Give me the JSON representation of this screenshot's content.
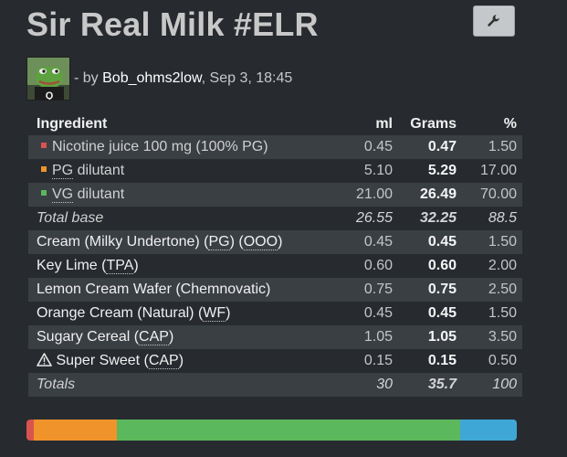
{
  "title": "Sir Real Milk #ELR",
  "author": {
    "prefix": "- by",
    "username": "Bob_ohms2low",
    "date": "Sep 3, 18:45"
  },
  "table": {
    "headers": {
      "name": "Ingredient",
      "ml": "ml",
      "grams": "Grams",
      "pct": "%"
    },
    "base_rows": [
      {
        "pre": "Nicotine juice 100 mg (100% PG)",
        "abbr": "",
        "post": "",
        "color": "#d9534f",
        "ml": "0.45",
        "grams": "0.47",
        "pct": "1.50"
      },
      {
        "pre": "",
        "abbr": "PG",
        "post": " dilutant",
        "color": "#f0932b",
        "ml": "5.10",
        "grams": "5.29",
        "pct": "17.00"
      },
      {
        "pre": "",
        "abbr": "VG",
        "post": " dilutant",
        "color": "#5cb85c",
        "ml": "21.00",
        "grams": "26.49",
        "pct": "70.00"
      }
    ],
    "total_base": {
      "label": "Total base",
      "ml": "26.55",
      "grams": "32.25",
      "pct": "88.5"
    },
    "flavors": [
      {
        "pre": "Cream (Milky Undertone) (",
        "abbr": "PG",
        "mid": ") (",
        "abbr2": "OOO",
        "post": ")",
        "warn": false,
        "ml": "0.45",
        "grams": "0.45",
        "pct": "1.50"
      },
      {
        "pre": "Key Lime (",
        "abbr": "TPA",
        "mid": "",
        "abbr2": "",
        "post": ")",
        "warn": false,
        "ml": "0.60",
        "grams": "0.60",
        "pct": "2.00"
      },
      {
        "pre": "Lemon Cream Wafer (Chemnovatic)",
        "abbr": "",
        "mid": "",
        "abbr2": "",
        "post": "",
        "warn": false,
        "ml": "0.75",
        "grams": "0.75",
        "pct": "2.50"
      },
      {
        "pre": "Orange Cream (Natural) (",
        "abbr": "WF",
        "mid": "",
        "abbr2": "",
        "post": ")",
        "warn": false,
        "ml": "0.45",
        "grams": "0.45",
        "pct": "1.50"
      },
      {
        "pre": "Sugary Cereal (",
        "abbr": "CAP",
        "mid": "",
        "abbr2": "",
        "post": ")",
        "warn": false,
        "ml": "1.05",
        "grams": "1.05",
        "pct": "3.50"
      },
      {
        "pre": " Super Sweet (",
        "abbr": "CAP",
        "mid": "",
        "abbr2": "",
        "post": ")",
        "warn": true,
        "ml": "0.15",
        "grams": "0.15",
        "pct": "0.50"
      }
    ],
    "totals": {
      "label": "Totals",
      "ml": "30",
      "grams": "35.7",
      "pct": "100"
    }
  },
  "composition_bar": {
    "segments": [
      {
        "name": "nicotine",
        "percent": 1.5,
        "color": "#d9534f"
      },
      {
        "name": "pg",
        "percent": 17,
        "color": "#f0932b"
      },
      {
        "name": "vg",
        "percent": 70,
        "color": "#5cb85c"
      },
      {
        "name": "flavors",
        "percent": 11.5,
        "color": "#3fa7d6"
      }
    ]
  },
  "icons": {
    "settings_button": "wrench-icon",
    "warning": "warning-triangle-icon"
  }
}
